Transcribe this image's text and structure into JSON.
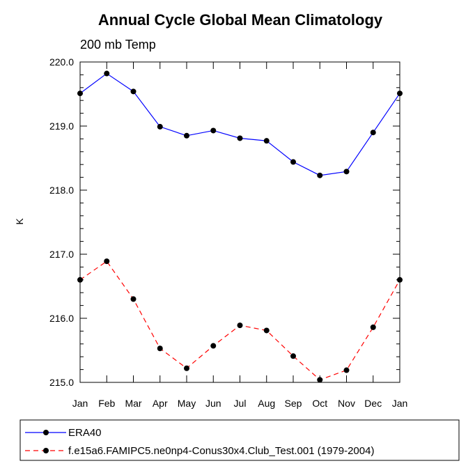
{
  "chart_data": {
    "type": "line",
    "title": "Annual Cycle Global Mean Climatology",
    "subtitle": "200 mb Temp",
    "xlabel": "",
    "ylabel": "K",
    "categories": [
      "Jan",
      "Feb",
      "Mar",
      "Apr",
      "May",
      "Jun",
      "Jul",
      "Aug",
      "Sep",
      "Oct",
      "Nov",
      "Dec",
      "Jan"
    ],
    "yticks": [
      "215.0",
      "216.0",
      "217.0",
      "218.0",
      "219.0",
      "220.0"
    ],
    "ylim": [
      215.0,
      220.0
    ],
    "grid": false,
    "legend": "bottom",
    "series": [
      {
        "name": "ERA40",
        "color": "#0000ff",
        "dash": "solid",
        "values": [
          219.51,
          219.82,
          219.54,
          218.99,
          218.85,
          218.93,
          218.81,
          218.77,
          218.44,
          218.23,
          218.29,
          218.9,
          219.51
        ]
      },
      {
        "name": "f.e15a6.FAMIPC5.ne0np4-Conus30x4.Club_Test.001 (1979-2004)",
        "color": "#ff0000",
        "dash": "dashed",
        "values": [
          216.6,
          216.89,
          216.3,
          215.53,
          215.22,
          215.57,
          215.89,
          215.81,
          215.41,
          215.04,
          215.19,
          215.86,
          216.6
        ]
      }
    ]
  }
}
